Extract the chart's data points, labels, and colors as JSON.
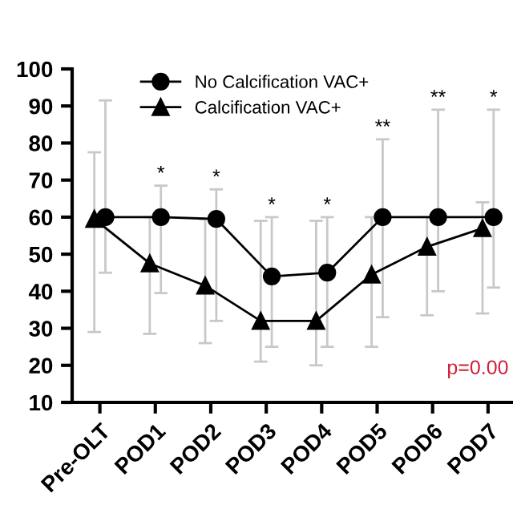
{
  "chart_data": {
    "type": "line",
    "categories": [
      "Pre-OLT",
      "POD1",
      "POD2",
      "POD3",
      "POD4",
      "POD5",
      "POD6",
      "POD7"
    ],
    "series": [
      {
        "name": "No Calcification VAC+",
        "color": "#000000",
        "marker": "circle",
        "values": [
          60,
          60,
          59.5,
          44,
          45,
          60,
          60,
          60
        ],
        "errors": [
          [
            45,
            91.5
          ],
          [
            39.5,
            68.5
          ],
          [
            32,
            67.5
          ],
          [
            25,
            60
          ],
          [
            25,
            60
          ],
          [
            33,
            81
          ],
          [
            40,
            89
          ],
          [
            41,
            89
          ]
        ]
      },
      {
        "name": "Calcification VAC+",
        "color": "#000000",
        "marker": "triangle",
        "values": [
          59.5,
          47.5,
          41.5,
          32,
          32,
          44.5,
          52,
          57
        ],
        "errors": [
          [
            29,
            77.5
          ],
          [
            28.5,
            60
          ],
          [
            26,
            59.5
          ],
          [
            21,
            59
          ],
          [
            20,
            59
          ],
          [
            25,
            60
          ],
          [
            33.5,
            60
          ],
          [
            34,
            64
          ]
        ]
      }
    ],
    "ylim": [
      10,
      100
    ],
    "yticks": [
      10,
      20,
      30,
      40,
      50,
      60,
      70,
      80,
      90,
      100
    ],
    "grid": false,
    "legend": "top left",
    "annotations": [
      "*",
      "*",
      "*",
      "*",
      "**",
      "**",
      "*",
      "p=0.00"
    ]
  }
}
